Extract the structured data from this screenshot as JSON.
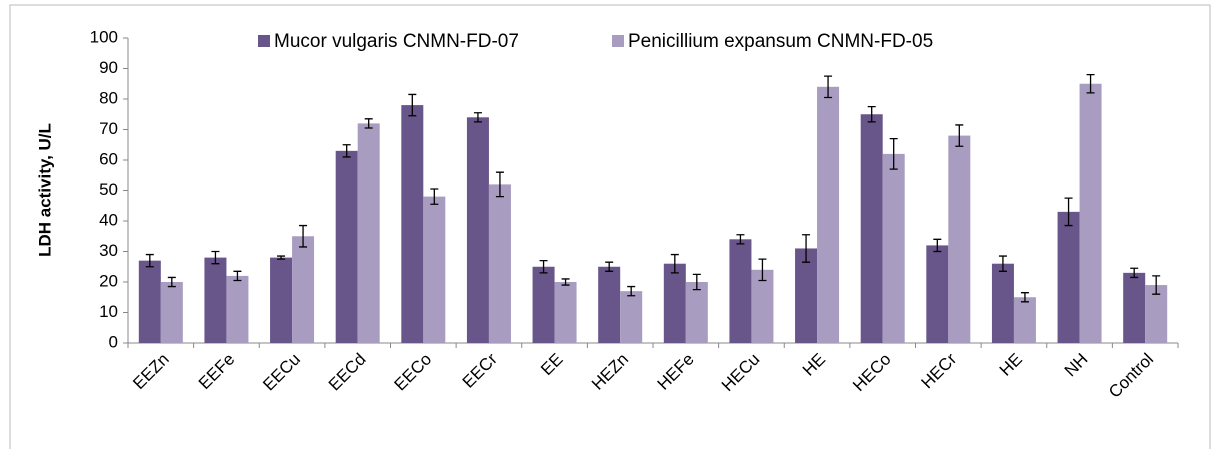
{
  "chart_data": {
    "type": "bar",
    "y_label": "LDH activity, U/L",
    "categories": [
      "EEZn",
      "EEFe",
      "EECu",
      "EECd",
      "EECo",
      "EECr",
      "EE",
      "HEZn",
      "HEFe",
      "HECu",
      "HE",
      "HECo",
      "HECr",
      "HE",
      "NH",
      "Control"
    ],
    "series": [
      {
        "name": "Mucor vulgaris CNMN-FD-07",
        "color": "#68558a",
        "values": [
          27,
          28,
          28,
          63,
          78,
          74,
          25,
          25,
          26,
          34,
          31,
          75,
          32,
          26,
          43,
          23
        ],
        "errors": [
          2,
          2,
          0.5,
          2,
          3.5,
          1.5,
          2,
          1.5,
          3,
          1.5,
          4.5,
          2.5,
          2,
          2.5,
          4.5,
          1.5
        ]
      },
      {
        "name": "Penicillium expansum CNMN-FD-05",
        "color": "#a89cc0",
        "values": [
          20,
          22,
          35,
          72,
          48,
          52,
          20,
          17,
          20,
          24,
          84,
          62,
          68,
          15,
          85,
          19
        ],
        "errors": [
          1.5,
          1.5,
          3.5,
          1.5,
          2.5,
          4,
          1,
          1.5,
          2.5,
          3.5,
          3.5,
          5,
          3.5,
          1.5,
          3,
          3
        ]
      }
    ],
    "ylim": [
      0,
      100
    ],
    "yticks": [
      0,
      10,
      20,
      30,
      40,
      50,
      60,
      70,
      80,
      90,
      100
    ],
    "legend": "top"
  }
}
